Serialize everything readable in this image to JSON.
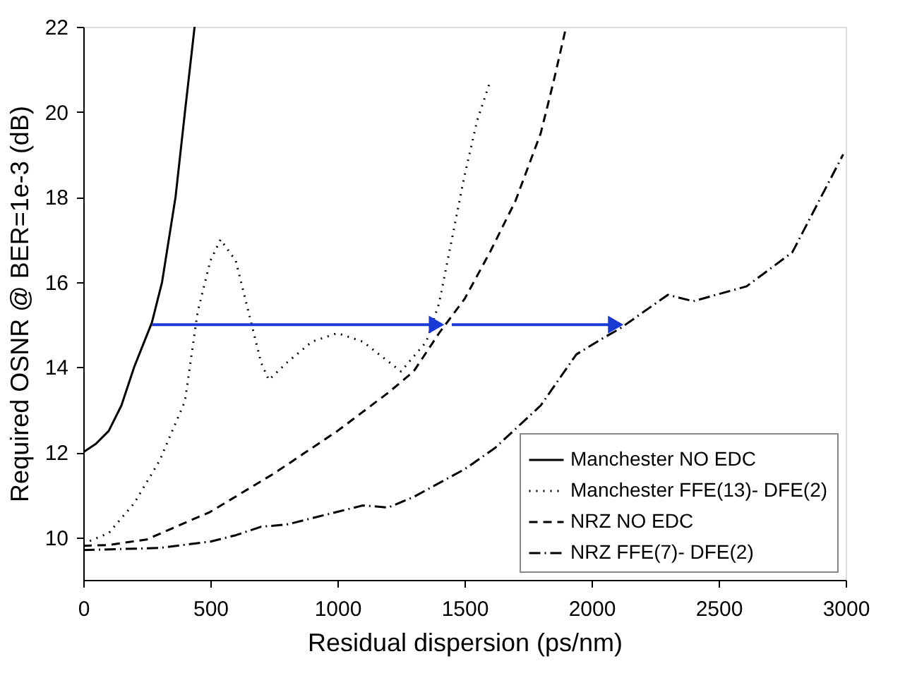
{
  "chart_data": {
    "type": "line",
    "xlabel": "Residual dispersion (ps/nm)",
    "ylabel": "Required OSNR @ BER=1e-3 (dB)",
    "xlim": [
      0,
      3000
    ],
    "xticks": [
      0,
      500,
      1000,
      1500,
      2000,
      2500,
      3000
    ],
    "ylim": [
      9,
      22
    ],
    "yticks": [
      10,
      12,
      14,
      16,
      18,
      20,
      22
    ],
    "grid": false,
    "legend": "bottom right",
    "series": [
      {
        "name": "Manchester NO EDC",
        "color": "#000000",
        "line_style": "solid",
        "x": [
          0,
          50,
          100,
          150,
          200,
          270,
          310,
          363,
          400,
          438
        ],
        "values": [
          12,
          12.2,
          12.5,
          13.1,
          14,
          15.05,
          16,
          18,
          20,
          22
        ]
      },
      {
        "name": "Manchester FFE(13)- DFE(2)",
        "color": "#000000",
        "line_style": "dotted",
        "x": [
          0,
          100,
          200,
          300,
          400,
          450,
          500,
          540,
          600,
          650,
          700,
          730,
          800,
          900,
          1000,
          1100,
          1250,
          1350,
          1400,
          1450,
          1500,
          1550,
          1600
        ],
        "values": [
          9.85,
          10.1,
          10.8,
          11.8,
          13.2,
          15.3,
          16.5,
          17,
          16.5,
          15.3,
          14.1,
          13.7,
          14.1,
          14.6,
          14.8,
          14.6,
          13.9,
          14.6,
          15.5,
          17,
          18.5,
          19.8,
          20.7
        ]
      },
      {
        "name": "NRZ NO EDC",
        "color": "#000000",
        "line_style": "dashed",
        "x": [
          0,
          100,
          250,
          500,
          750,
          1000,
          1200,
          1300,
          1400,
          1500,
          1600,
          1700,
          1800,
          1850,
          1900
        ],
        "values": [
          9.8,
          9.82,
          9.95,
          10.6,
          11.5,
          12.5,
          13.4,
          13.9,
          14.8,
          15.6,
          16.7,
          17.9,
          19.5,
          20.7,
          22
        ]
      },
      {
        "name": "NRZ FFE(7)- DFE(2)",
        "color": "#000000",
        "line_style": "dashdot",
        "x": [
          0,
          300,
          500,
          600,
          700,
          800,
          1000,
          1100,
          1200,
          1300,
          1500,
          1620,
          1800,
          1940,
          2050,
          2110,
          2300,
          2400,
          2610,
          2790,
          2990
        ],
        "values": [
          9.7,
          9.75,
          9.9,
          10.05,
          10.25,
          10.3,
          10.6,
          10.75,
          10.7,
          10.95,
          11.6,
          12.1,
          13.1,
          14.3,
          14.7,
          14.9,
          15.7,
          15.55,
          15.9,
          16.7,
          19.0
        ]
      },
      {
        "color": "#1a3ad6",
        "line_style": "solid",
        "marker": "triangle",
        "x": [
          270,
          1390
        ],
        "values": [
          15,
          15
        ]
      },
      {
        "color": "#1a3ad6",
        "line_style": "solid",
        "marker": "triangle",
        "x": [
          1450,
          2095
        ],
        "values": [
          15,
          15
        ]
      }
    ]
  }
}
